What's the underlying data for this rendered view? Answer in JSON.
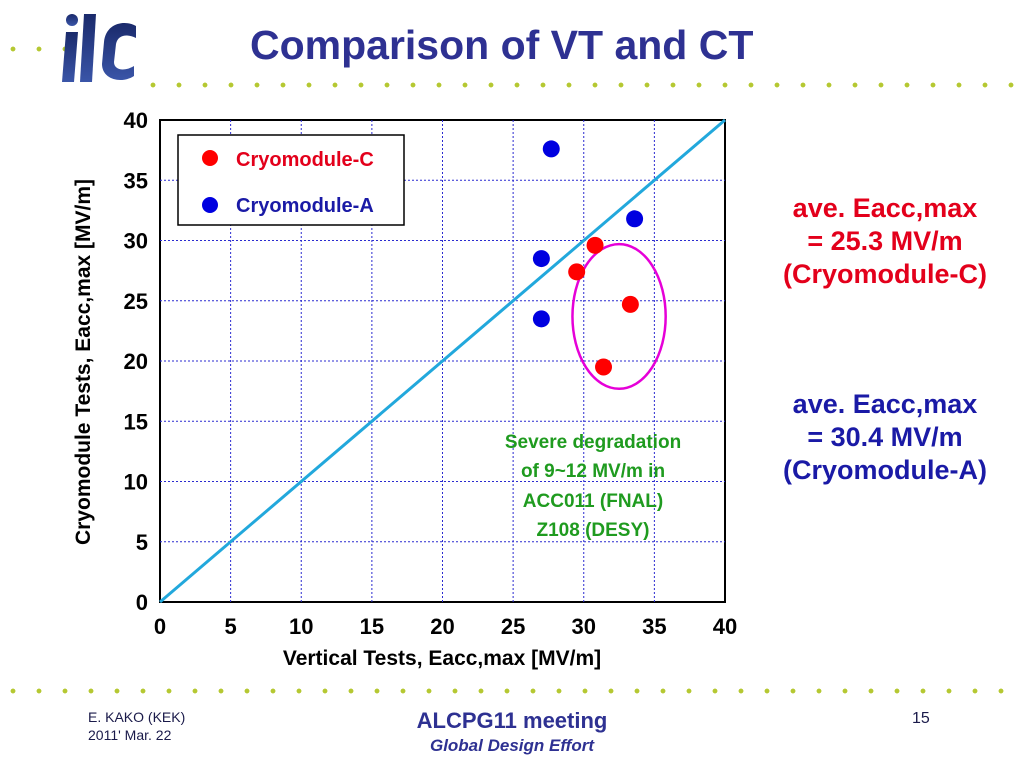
{
  "slide": {
    "title": "Comparison of VT and CT",
    "logo_text": "ilc"
  },
  "notes": {
    "cryomodule_c": [
      "ave. Eacc,max",
      "= 25.3 MV/m",
      "(Cryomodule-C)"
    ],
    "cryomodule_a": [
      "ave. Eacc,max",
      "= 30.4 MV/m",
      "(Cryomodule-A)"
    ]
  },
  "footer": {
    "author": "E. KAKO (KEK)",
    "date": "2011' Mar. 22",
    "meeting": "ALCPG11 meeting",
    "org": "Global Design Effort",
    "page": "15"
  },
  "colors": {
    "title": "#2e3192",
    "cryomodule_c": "#ff0000",
    "cryomodule_a": "#0000e0",
    "diagonal": "#22a8dc",
    "highlight_ellipse": "#e600d8",
    "annotation": "#1f9b1f",
    "accent_dots": "#b5c832"
  },
  "chart_data": {
    "type": "scatter",
    "xlabel": "Vertical Tests,  Eacc,max  [MV/m]",
    "ylabel": "Cryomodule Tests,  Eacc,max  [MV/m]",
    "xlim": [
      0,
      40
    ],
    "ylim": [
      0,
      40
    ],
    "xticks": [
      0,
      5,
      10,
      15,
      20,
      25,
      30,
      35,
      40
    ],
    "yticks": [
      0,
      5,
      10,
      15,
      20,
      25,
      30,
      35,
      40
    ],
    "grid": true,
    "legend_position": "top-left",
    "reference_line": {
      "x": [
        0,
        40
      ],
      "y": [
        0,
        40
      ]
    },
    "series": [
      {
        "name": "Cryomodule-C",
        "color": "#ff0000",
        "points": [
          [
            29.5,
            27.4
          ],
          [
            30.8,
            29.6
          ],
          [
            33.3,
            24.7
          ],
          [
            31.4,
            19.5
          ]
        ]
      },
      {
        "name": "Cryomodule-A",
        "color": "#0000e0",
        "points": [
          [
            27.7,
            37.6
          ],
          [
            33.6,
            31.8
          ],
          [
            27.0,
            28.5
          ],
          [
            27.0,
            23.5
          ]
        ]
      }
    ],
    "annotation": {
      "lines": [
        "Severe degradation",
        "of 9~12 MV/m in",
        "ACC011 (FNAL)",
        "Z108 (DESY)"
      ],
      "ellipse_center": [
        32.5,
        23.7
      ],
      "ellipse_radius": [
        3.3,
        6.0
      ]
    }
  }
}
